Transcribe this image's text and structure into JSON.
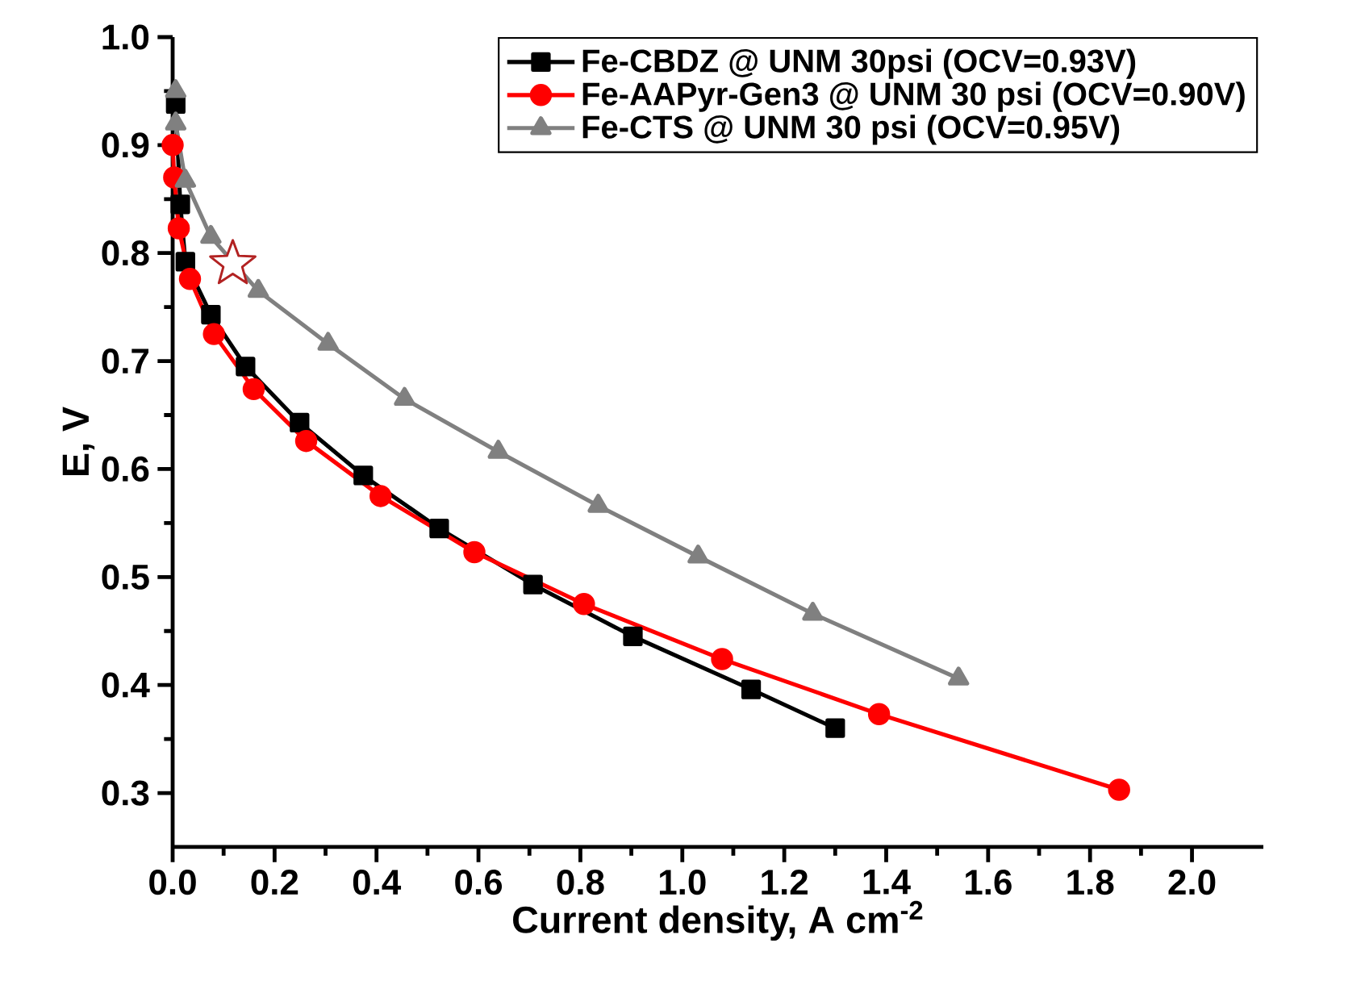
{
  "chart_data": {
    "type": "line",
    "xlabel": "Current density, A cm$^{-2}$",
    "ylabel": "E, V",
    "xlim": [
      0,
      2.14
    ],
    "ylim": [
      0.25,
      1.0
    ],
    "xticks": [
      {
        "value": 0,
        "label": "0.0"
      },
      {
        "value": 0.2,
        "label": "0.2"
      },
      {
        "value": 0.4,
        "label": "0.4"
      },
      {
        "value": 0.6,
        "label": "0.6"
      },
      {
        "value": 0.8,
        "label": "0.8"
      },
      {
        "value": 1.0,
        "label": "1.0"
      },
      {
        "value": 1.2,
        "label": "1.2"
      },
      {
        "value": 1.4,
        "label": "1.4"
      },
      {
        "value": 1.6,
        "label": "1.6"
      },
      {
        "value": 1.8,
        "label": "1.8"
      },
      {
        "value": 2.0,
        "label": "2.0"
      }
    ],
    "yticks": [
      {
        "value": 0.3,
        "label": "0.3"
      },
      {
        "value": 0.4,
        "label": "0.4"
      },
      {
        "value": 0.5,
        "label": "0.5"
      },
      {
        "value": 0.6,
        "label": "0.6"
      },
      {
        "value": 0.7,
        "label": "0.7"
      },
      {
        "value": 0.8,
        "label": "0.8"
      },
      {
        "value": 0.9,
        "label": "0.9"
      },
      {
        "value": 1.0,
        "label": "1.0"
      }
    ],
    "legend": "top right",
    "grid": false,
    "line_style": "solid",
    "series": [
      {
        "name": "Fe-CBDZ @ UNM 30psi (OCV=0.93V)",
        "color": "#000000",
        "marker": "square",
        "x": [
          0.006,
          0.015,
          0.025,
          0.075,
          0.143,
          0.249,
          0.374,
          0.523,
          0.707,
          0.903,
          1.135,
          1.3
        ],
        "values": [
          0.938,
          0.845,
          0.792,
          0.743,
          0.695,
          0.643,
          0.594,
          0.545,
          0.493,
          0.445,
          0.396,
          0.36
        ]
      },
      {
        "name": "Fe-AAPyr-Gen3 @ UNM 30 psi (OCV=0.90V)",
        "color": "#ff0000",
        "marker": "circle",
        "x": [
          0,
          0.003,
          0.012,
          0.034,
          0.081,
          0.159,
          0.262,
          0.408,
          0.592,
          0.807,
          1.078,
          1.386,
          1.857
        ],
        "values": [
          0.9,
          0.87,
          0.823,
          0.776,
          0.725,
          0.674,
          0.626,
          0.575,
          0.523,
          0.475,
          0.424,
          0.373,
          0.303
        ]
      },
      {
        "name": "Fe-CTS @ UNM 30 psi (OCV=0.95V)",
        "color": "#808080",
        "marker": "triangle",
        "x": [
          0.006,
          0.006,
          0.025,
          0.075,
          0.168,
          0.305,
          0.455,
          0.639,
          0.835,
          1.031,
          1.256,
          1.542
        ],
        "values": [
          0.95,
          0.92,
          0.867,
          0.815,
          0.765,
          0.716,
          0.665,
          0.616,
          0.566,
          0.519,
          0.466,
          0.406
        ]
      },
      {
        "type": "scatter",
        "color": "#b22222",
        "marker": "star",
        "x": [
          0.118
        ],
        "values": [
          0.79
        ]
      }
    ]
  }
}
